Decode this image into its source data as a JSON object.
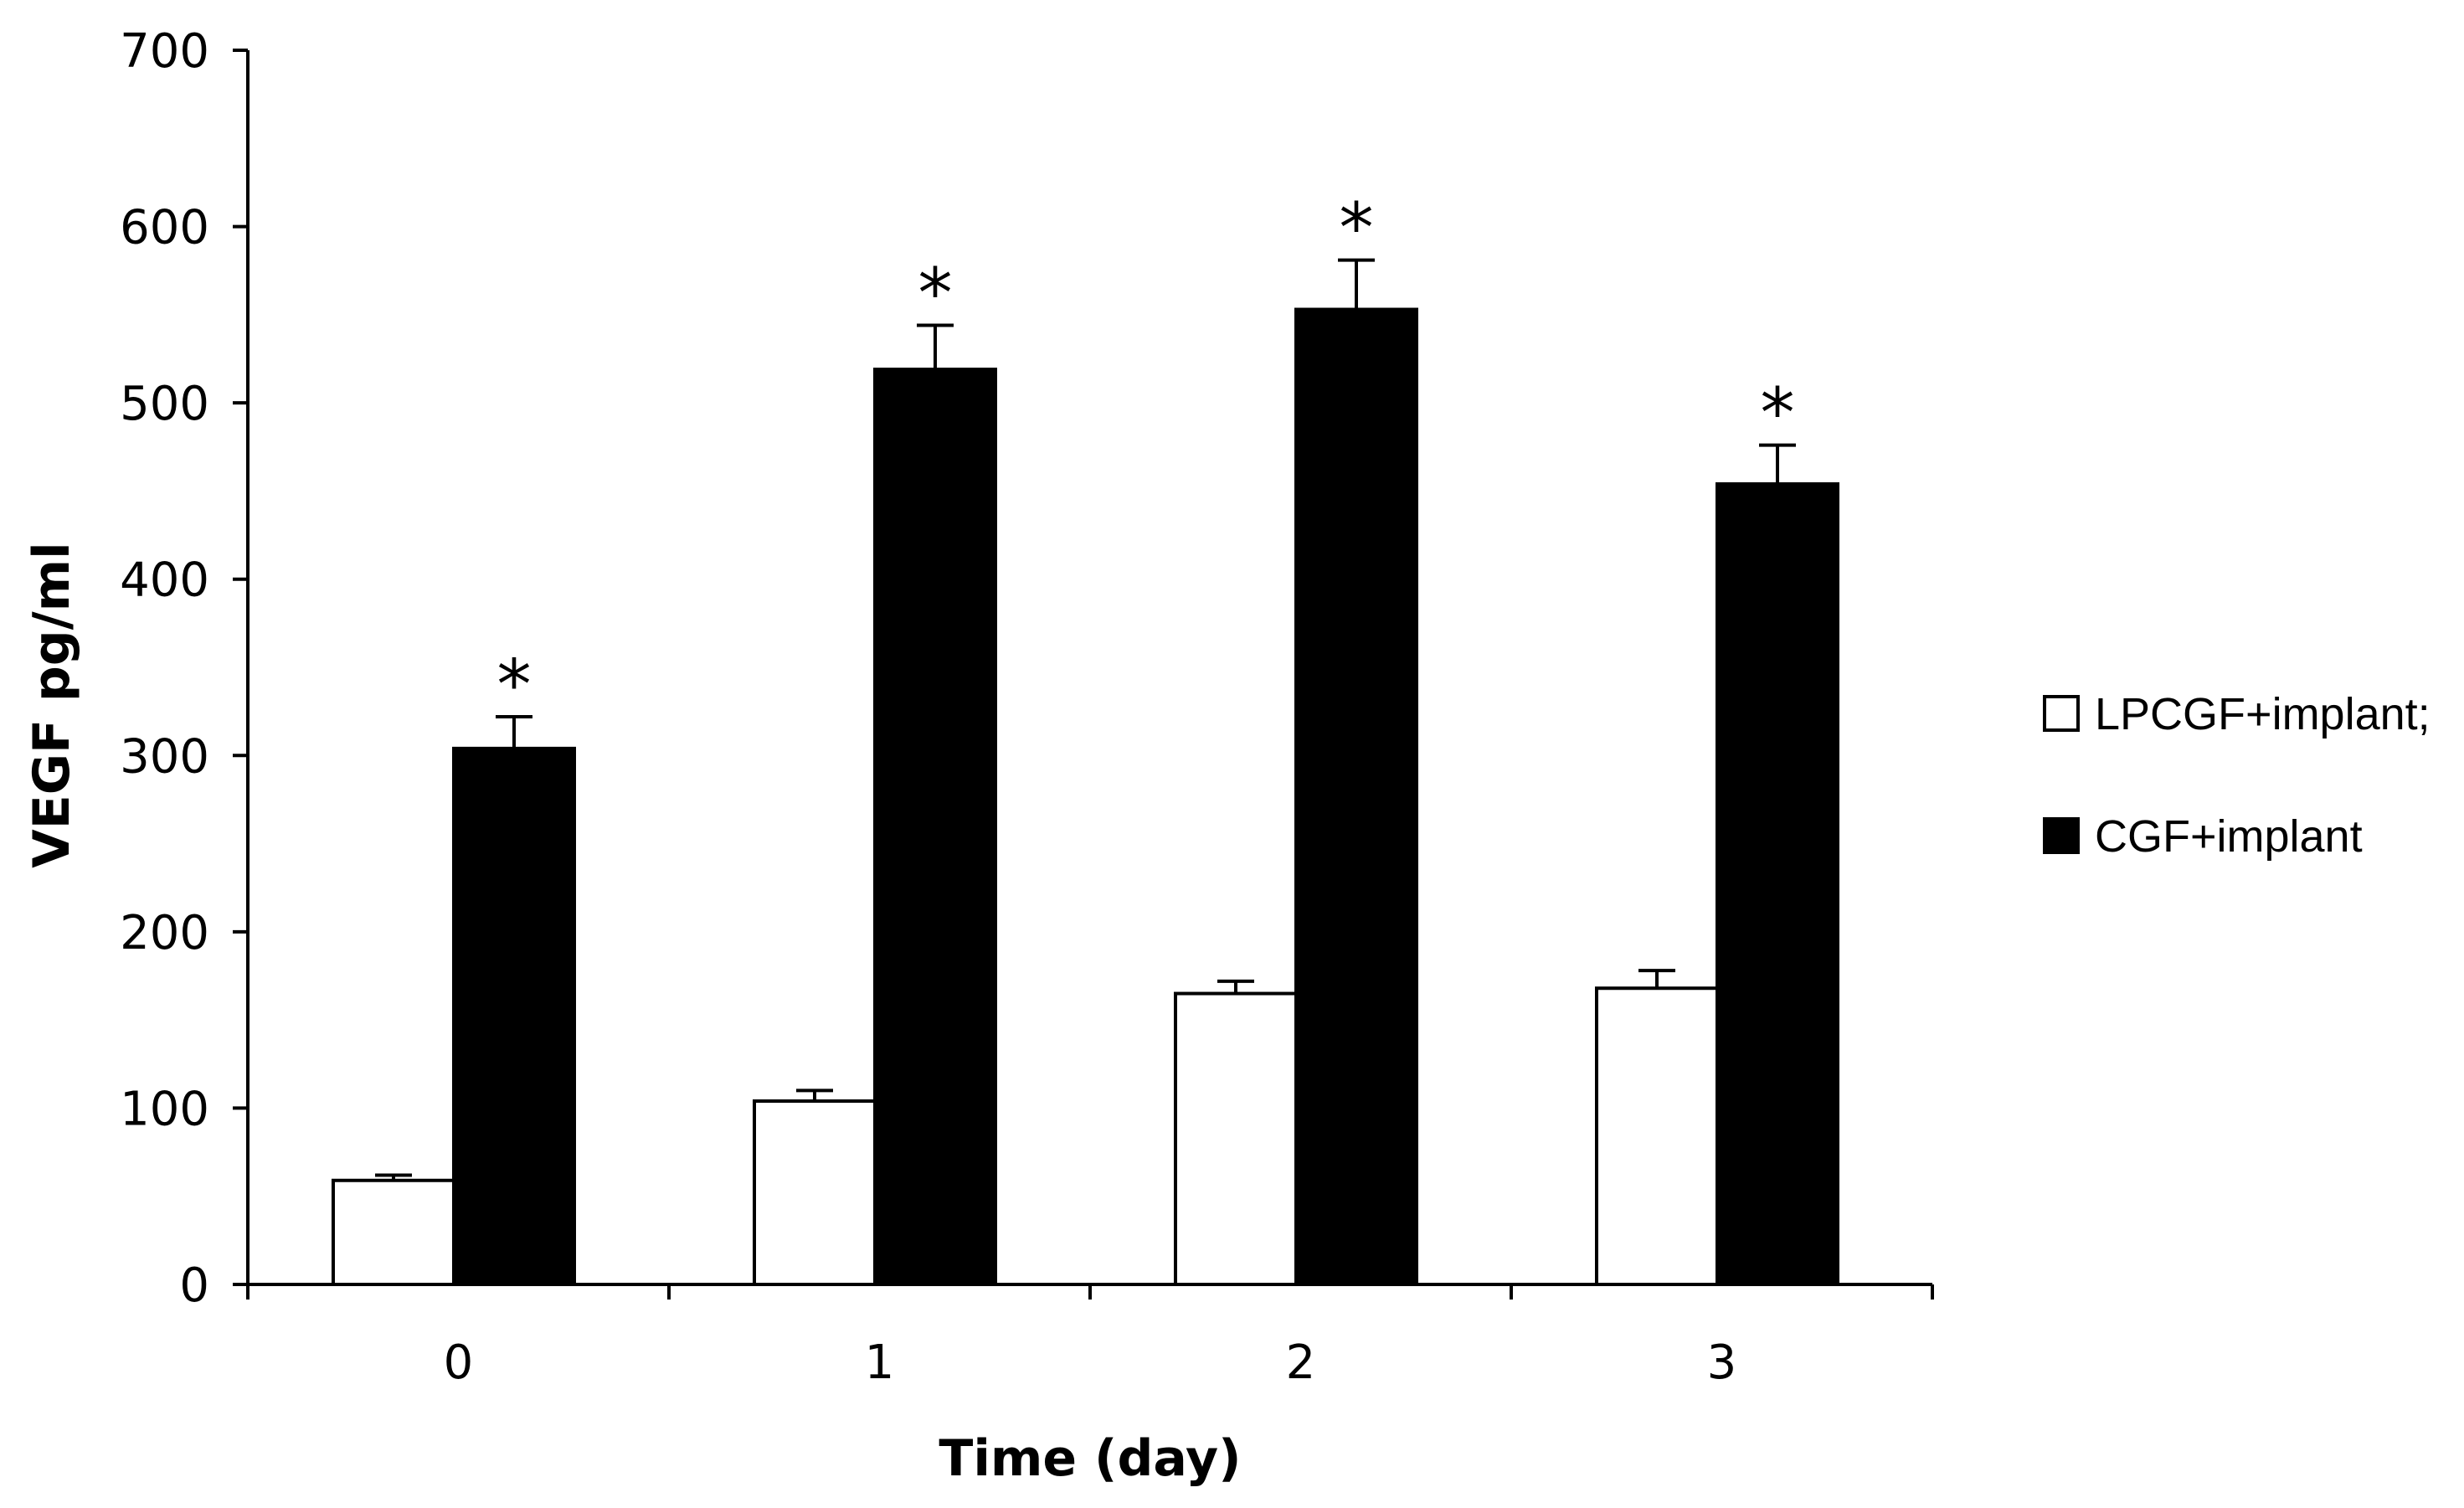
{
  "chart_data": {
    "type": "bar",
    "title": "",
    "xlabel": "Time (day)",
    "ylabel": "VEGF pg/ml",
    "ylim": [
      0,
      700
    ],
    "yticks": [
      0,
      100,
      200,
      300,
      400,
      500,
      600,
      700
    ],
    "categories": [
      "0",
      "1",
      "2",
      "3"
    ],
    "series": [
      {
        "name": "LPCGF+implant;",
        "fill": "#ffffff",
        "stroke": "#000000",
        "values": [
          59,
          104,
          165,
          168
        ],
        "errors": [
          3,
          6,
          7,
          10
        ]
      },
      {
        "name": "CGF+implant",
        "fill": "#000000",
        "stroke": "#000000",
        "values": [
          304,
          519,
          553,
          454
        ],
        "errors": [
          18,
          25,
          28,
          22
        ]
      }
    ],
    "annotations": [
      {
        "series": 1,
        "category": "0",
        "text": "*"
      },
      {
        "series": 1,
        "category": "1",
        "text": "*"
      },
      {
        "series": 1,
        "category": "2",
        "text": "*"
      },
      {
        "series": 1,
        "category": "3",
        "text": "*"
      }
    ],
    "grid": false,
    "legend_position": "right"
  }
}
